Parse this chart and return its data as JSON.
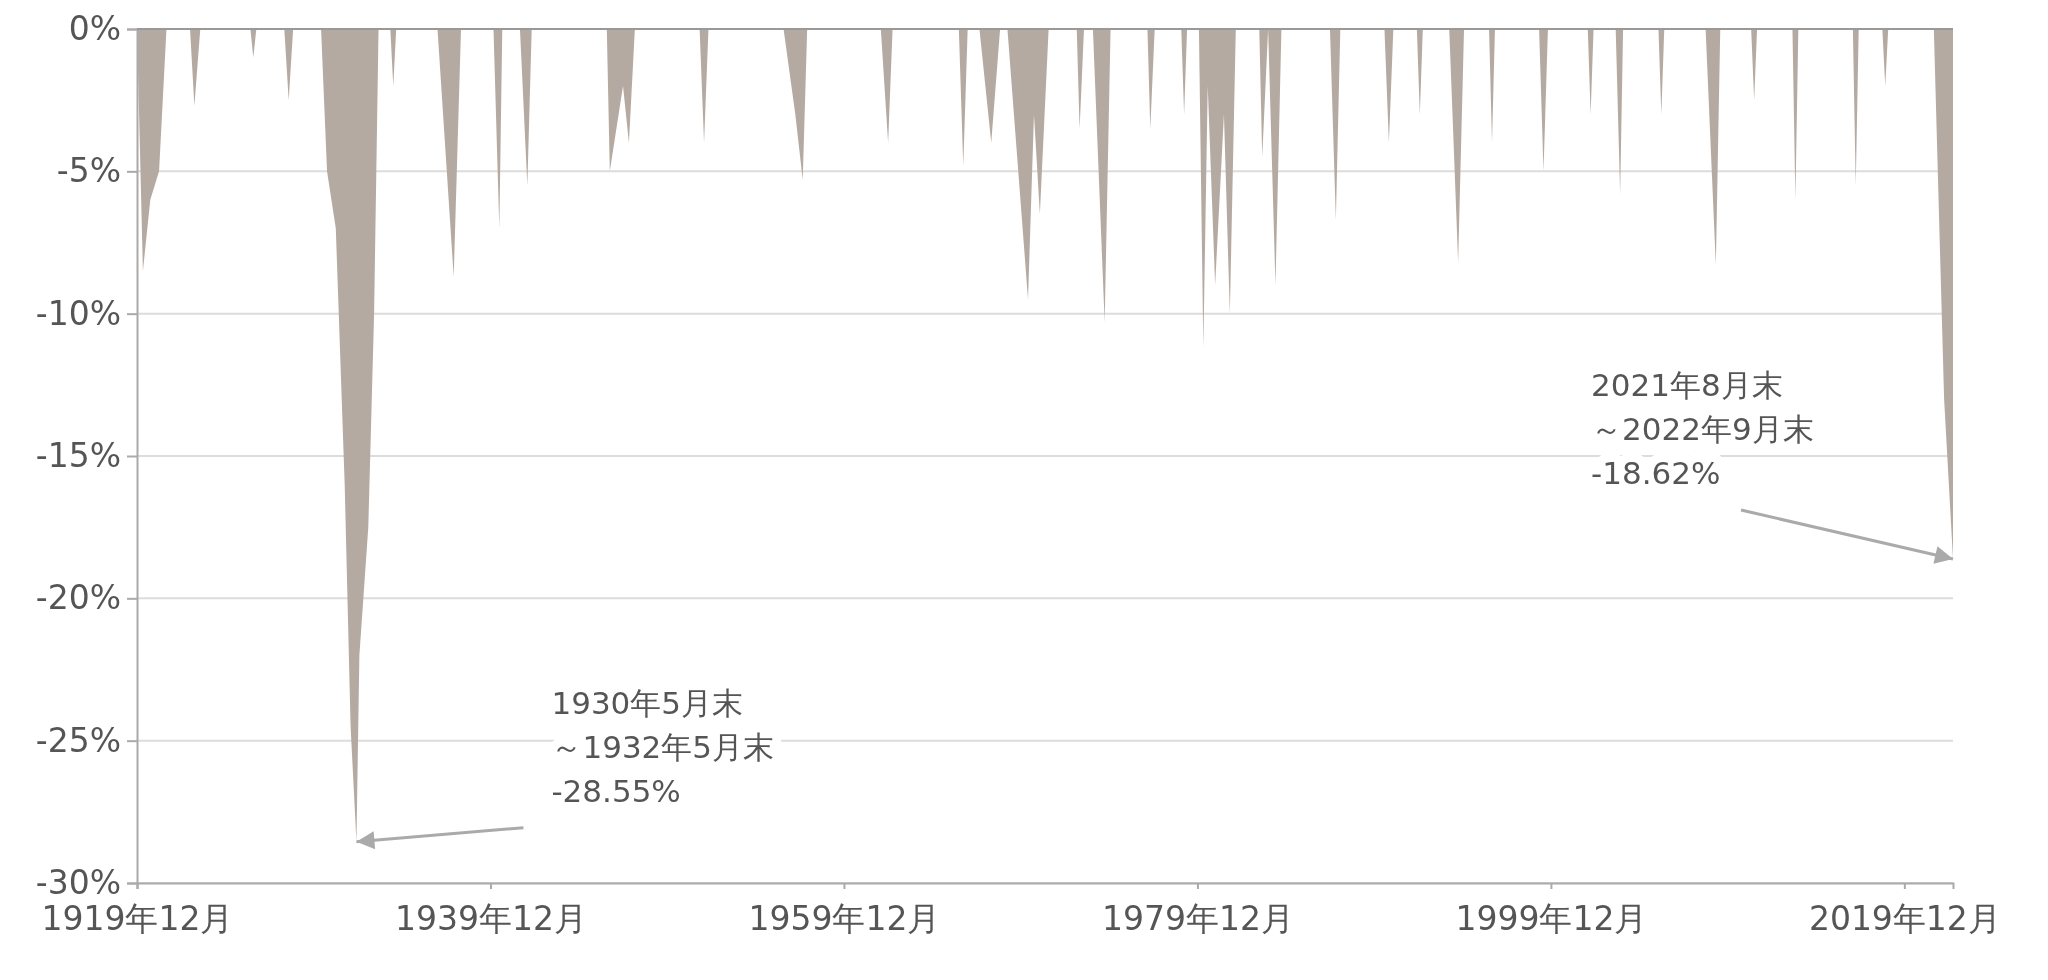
{
  "chart_data": {
    "type": "area",
    "color": "#b5aaa2",
    "x": [
      "1919-12",
      "1920-04",
      "1920-09",
      "1921-03",
      "1921-08",
      "1922-12",
      "1923-03",
      "1923-07",
      "1926-05",
      "1926-07",
      "1926-09",
      "1928-04",
      "1928-07",
      "1928-10",
      "1930-05",
      "1930-09",
      "1931-03",
      "1931-09",
      "1932-01",
      "1932-05",
      "1932-07",
      "1933-01",
      "1933-05",
      "1933-08",
      "1934-04",
      "1934-06",
      "1934-08",
      "1936-12",
      "1937-11",
      "1938-04",
      "1940-02",
      "1940-06",
      "1940-08",
      "1941-08",
      "1942-01",
      "1942-04",
      "1946-07",
      "1946-09",
      "1947-06",
      "1947-10",
      "1948-02",
      "1951-10",
      "1952-01",
      "1952-04",
      "1956-07",
      "1957-03",
      "1957-08",
      "1957-11",
      "1962-01",
      "1962-06",
      "1962-09",
      "1966-06",
      "1966-09",
      "1966-12",
      "1967-08",
      "1968-04",
      "1968-10",
      "1969-03",
      "1970-05",
      "1970-09",
      "1971-01",
      "1971-07",
      "1973-02",
      "1973-04",
      "1973-07",
      "1974-01",
      "1974-09",
      "1975-01",
      "1977-02",
      "1977-04",
      "1977-07",
      "1979-01",
      "1979-03",
      "1979-05",
      "1980-01",
      "1980-04",
      "1980-07",
      "1980-12",
      "1981-06",
      "1981-10",
      "1982-02",
      "1983-06",
      "1983-08",
      "1983-12",
      "1984-05",
      "1984-09",
      "1987-06",
      "1987-10",
      "1988-01",
      "1990-07",
      "1990-10",
      "1991-01",
      "1992-05",
      "1992-07",
      "1992-09",
      "1994-03",
      "1994-09",
      "1995-01",
      "1996-06",
      "1996-08",
      "1996-10",
      "1999-04",
      "1999-07",
      "1999-10",
      "2002-01",
      "2002-03",
      "2002-05",
      "2003-08",
      "2003-11",
      "2004-01",
      "2006-01",
      "2006-03",
      "2006-05",
      "2008-09",
      "2009-04",
      "2009-07",
      "2011-04",
      "2011-06",
      "2011-08",
      "2013-08",
      "2013-10",
      "2013-12",
      "2017-01",
      "2017-03",
      "2017-05",
      "2018-09",
      "2018-11",
      "2019-01",
      "2021-08",
      "2022-03",
      "2022-09"
    ],
    "values": [
      0,
      -8.5,
      -6,
      -5,
      0,
      0,
      -2.7,
      0,
      0,
      -1,
      0,
      0,
      -2.5,
      0,
      0,
      -5,
      -7,
      -16,
      -24.5,
      -28.55,
      -22,
      -17.5,
      -10,
      0,
      0,
      -2,
      0,
      0,
      -8.7,
      0,
      0,
      -7,
      0,
      0,
      -5.5,
      0,
      0,
      -5,
      -2,
      -4,
      0,
      0,
      -4,
      0,
      0,
      -3,
      -5.3,
      0,
      0,
      -4,
      0,
      0,
      -4.8,
      0,
      0,
      -4,
      0,
      0,
      -9.5,
      -3,
      -6.5,
      0,
      0,
      -3.5,
      0,
      0,
      -10.3,
      0,
      0,
      -3.5,
      0,
      0,
      -3,
      0,
      0,
      -11.2,
      -2,
      -9,
      -3,
      -10,
      0,
      0,
      -4.5,
      0,
      -9,
      0,
      0,
      -6.7,
      0,
      0,
      -4,
      0,
      0,
      -3,
      0,
      0,
      -8.2,
      0,
      0,
      -4,
      0,
      0,
      -5,
      0,
      0,
      -3,
      0,
      0,
      -5.8,
      0,
      0,
      -3,
      0,
      0,
      -8.3,
      0,
      0,
      -2.5,
      0,
      0,
      -6,
      0,
      0,
      -5.5,
      0,
      0,
      -2,
      0,
      0,
      -13,
      -18.62
    ],
    "xlim": [
      "1919-12",
      "2022-09"
    ],
    "xticks": [
      {
        "value": "1919-12",
        "label": "1919年12月"
      },
      {
        "value": "1939-12",
        "label": "1939年12月"
      },
      {
        "value": "1959-12",
        "label": "1959年12月"
      },
      {
        "value": "1979-12",
        "label": "1979年12月"
      },
      {
        "value": "1999-12",
        "label": "1999年12月"
      },
      {
        "value": "2019-12",
        "label": "2019年12月"
      }
    ],
    "ylim": [
      -30,
      0
    ],
    "yticks": [
      {
        "value": 0,
        "label": "0%"
      },
      {
        "value": -5,
        "label": "-5%"
      },
      {
        "value": -10,
        "label": "-10%"
      },
      {
        "value": -15,
        "label": "-15%"
      },
      {
        "value": -20,
        "label": "-20%"
      },
      {
        "value": -25,
        "label": "-25%"
      },
      {
        "value": -30,
        "label": "-30%"
      }
    ],
    "grid": "y",
    "annotations": [
      {
        "text": "1930年5月末～1932年5月末-28.55%",
        "x": "1932-05",
        "y": -28.55
      },
      {
        "text": "2021年8月末～2022年9月末-18.62%",
        "x": "2022-09",
        "y": -18.62
      }
    ]
  }
}
